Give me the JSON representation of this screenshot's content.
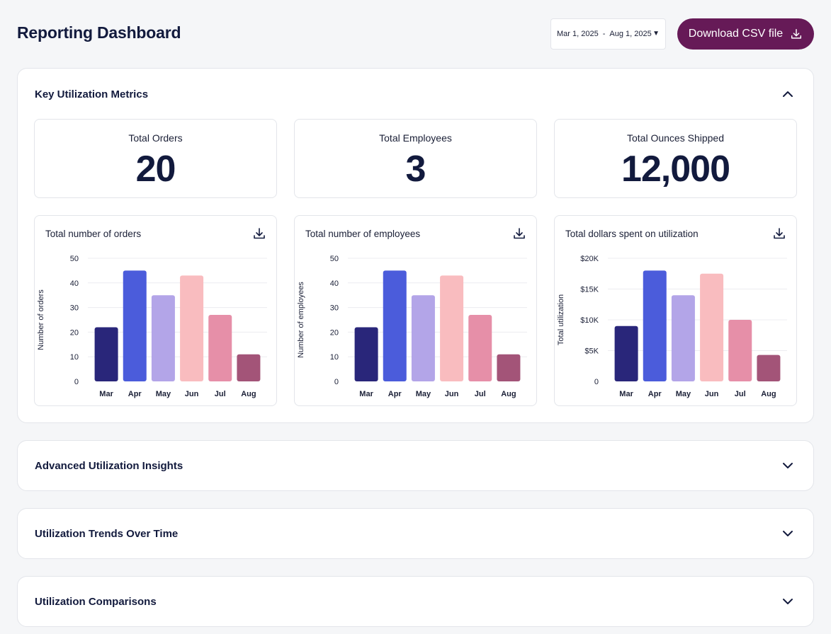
{
  "header": {
    "title": "Reporting Dashboard",
    "date_start": "Mar 1, 2025",
    "date_sep": "-",
    "date_end": "Aug 1, 2025",
    "download_label": "Download CSV file"
  },
  "colors": {
    "brand": "#661a57",
    "bars": [
      "#29267a",
      "#4b5cdb",
      "#b3a5e8",
      "#f9bcbf",
      "#e68fa8",
      "#a35478"
    ]
  },
  "key_metrics": {
    "title": "Key Utilization Metrics",
    "expanded": true,
    "stats": [
      {
        "label": "Total Orders",
        "value": "20"
      },
      {
        "label": "Total Employees",
        "value": "3"
      },
      {
        "label": "Total Ounces Shipped",
        "value": "12,000"
      }
    ],
    "chart_titles": [
      "Total number of orders",
      "Total number of employees",
      "Total dollars spent on utilization"
    ]
  },
  "chart_data": [
    {
      "type": "bar",
      "title": "Total number of orders",
      "ylabel": "Number of orders",
      "categories": [
        "Mar",
        "Apr",
        "May",
        "Jun",
        "Jul",
        "Aug"
      ],
      "values": [
        22,
        45,
        35,
        43,
        27,
        11
      ],
      "ylim": [
        0,
        50
      ],
      "yticks": [
        0,
        10,
        20,
        30,
        40,
        50
      ],
      "ytick_labels": [
        "0",
        "10",
        "20",
        "30",
        "40",
        "50"
      ],
      "grid": true
    },
    {
      "type": "bar",
      "title": "Total number of employees",
      "ylabel": "Number of employees",
      "categories": [
        "Mar",
        "Apr",
        "May",
        "Jun",
        "Jul",
        "Aug"
      ],
      "values": [
        22,
        45,
        35,
        43,
        27,
        11
      ],
      "ylim": [
        0,
        50
      ],
      "yticks": [
        0,
        10,
        20,
        30,
        40,
        50
      ],
      "ytick_labels": [
        "0",
        "10",
        "20",
        "30",
        "40",
        "50"
      ],
      "grid": true
    },
    {
      "type": "bar",
      "title": "Total dollars spent on utilization",
      "ylabel": "Total  utilization",
      "categories": [
        "Mar",
        "Apr",
        "May",
        "Jun",
        "Jul",
        "Aug"
      ],
      "values": [
        9000,
        18000,
        14000,
        17500,
        10000,
        4300
      ],
      "ylim": [
        0,
        20000
      ],
      "yticks": [
        0,
        5000,
        10000,
        15000,
        20000
      ],
      "ytick_labels": [
        "0",
        "$5K",
        "$10K",
        "$15K",
        "$20K"
      ],
      "grid": true
    }
  ],
  "sections": [
    {
      "title": "Advanced Utilization Insights",
      "expanded": false
    },
    {
      "title": "Utilization Trends Over Time",
      "expanded": false
    },
    {
      "title": "Utilization Comparisons",
      "expanded": false
    }
  ]
}
